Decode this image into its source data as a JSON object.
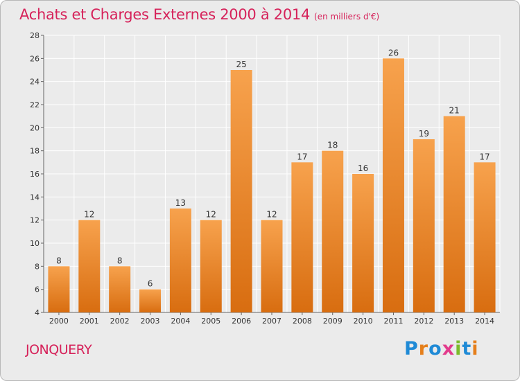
{
  "header": {
    "title": "Achats et Charges Externes 2000 à 2014",
    "unit": "(en milliers d'€)"
  },
  "footer": {
    "city": "JONQUERY",
    "logo_text": "Proxiti",
    "logo_colors": [
      "#1f8ad6",
      "#e57f1b",
      "#1f8ad6",
      "#e23a8c",
      "#7cba2a",
      "#1f8ad6",
      "#e57f1b"
    ]
  },
  "colors": {
    "bar_top": "#f7a24d",
    "bar_bottom": "#d86d10",
    "grid": "#ffffff",
    "axis": "#666666",
    "text": "#333333",
    "accent": "#d6225a",
    "background": "#ebebeb"
  },
  "chart_data": {
    "type": "bar",
    "categories": [
      "2000",
      "2001",
      "2002",
      "2003",
      "2004",
      "2005",
      "2006",
      "2007",
      "2008",
      "2009",
      "2010",
      "2011",
      "2012",
      "2013",
      "2014"
    ],
    "values": [
      8,
      12,
      8,
      6,
      13,
      12,
      25,
      12,
      17,
      18,
      16,
      26,
      19,
      21,
      17
    ],
    "data_labels": [
      "8",
      "12",
      "8",
      "6",
      "13",
      "12",
      "25",
      "12",
      "17",
      "18",
      "16",
      "26",
      "19",
      "21",
      "17"
    ],
    "title": "Achats et Charges Externes 2000 à 2014",
    "xlabel": "",
    "ylabel": "",
    "ylim": [
      4,
      28
    ],
    "yticks": [
      4,
      6,
      8,
      10,
      12,
      14,
      16,
      18,
      20,
      22,
      24,
      26,
      28
    ],
    "ytick_labels": [
      "4",
      "6",
      "8",
      "10",
      "12",
      "14",
      "16",
      "18",
      "20",
      "22",
      "24",
      "26",
      "28"
    ],
    "grid": true,
    "legend": "none"
  }
}
